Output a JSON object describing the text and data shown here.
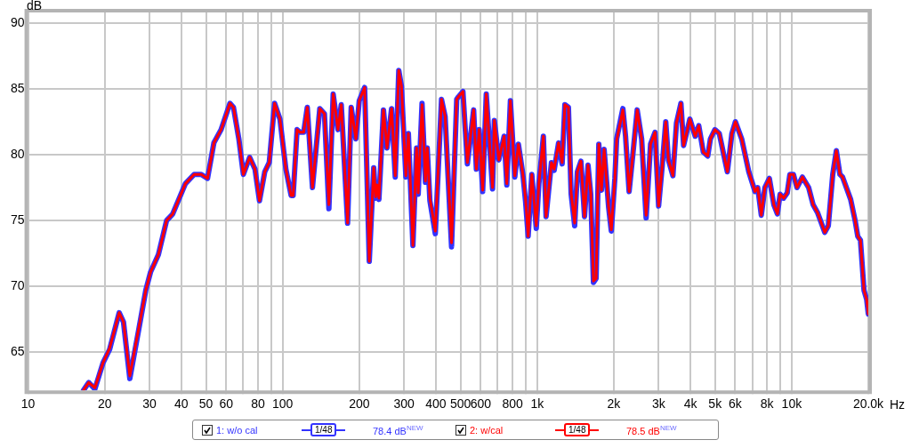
{
  "chart_data": {
    "type": "line",
    "xlabel": "Hz",
    "ylabel": "dB",
    "log": "x",
    "grid": true,
    "legend": "bottom",
    "marker": "none",
    "line_style": "solid",
    "xlim": [
      10,
      20000
    ],
    "ylim": [
      62.1,
      90.8
    ],
    "xticks": [
      10,
      20,
      30,
      40,
      50,
      60,
      {
        "value": 70,
        "label": null
      },
      80,
      {
        "value": 90,
        "label": null
      },
      100,
      200,
      300,
      400,
      500,
      600,
      {
        "value": 700,
        "label": null
      },
      800,
      {
        "value": 900,
        "label": null
      },
      {
        "value": 1000,
        "label": "1k"
      },
      {
        "value": 2000,
        "label": "2k"
      },
      {
        "value": 3000,
        "label": "3k"
      },
      {
        "value": 4000,
        "label": "4k"
      },
      {
        "value": 5000,
        "label": "5k"
      },
      {
        "value": 6000,
        "label": "6k"
      },
      {
        "value": 7000,
        "label": null
      },
      {
        "value": 8000,
        "label": "8k"
      },
      {
        "value": 9000,
        "label": null
      },
      {
        "value": 10000,
        "label": "10k"
      },
      {
        "value": 20000,
        "label": "20.0k"
      }
    ],
    "yticks": [
      65,
      70,
      75,
      80,
      85,
      90
    ],
    "annotations": [
      "1/48",
      "78.4 dB$^{NEW}$",
      "1/48",
      "78.5 dB$^{NEW}$"
    ],
    "x": [
      16.5,
      17.3,
      18.3,
      19.7,
      20.9,
      22.8,
      23.7,
      25.1,
      27.2,
      29.0,
      30.3,
      32.5,
      35.0,
      37.0,
      41.5,
      44.9,
      47.9,
      50.7,
      53.7,
      57.3,
      62.1,
      64.1,
      67.3,
      70.1,
      74.2,
      77.9,
      81.1,
      85.1,
      88.6,
      93.0,
      97.6,
      103,
      108,
      110,
      114,
      117,
      121,
      125,
      131,
      140,
      146,
      152,
      158,
      165,
      170,
      180,
      186,
      194,
      200,
      210,
      219,
      228,
      232,
      235,
      239,
      249,
      257,
      268,
      277,
      286,
      293,
      305,
      312,
      325,
      336,
      341,
      353,
      364,
      370,
      379,
      398,
      421,
      435,
      461,
      483,
      491,
      511,
      532,
      563,
      577,
      592,
      611,
      631,
      668,
      679,
      707,
      742,
      760,
      785,
      817,
      844,
      879,
      900,
      922,
      953,
      992,
      1016,
      1058,
      1084,
      1138,
      1166,
      1214,
      1254,
      1285,
      1327,
      1360,
      1404,
      1439,
      1486,
      1535,
      1585,
      1624,
      1664,
      1705,
      1747,
      1789,
      1833,
      1909,
      1956,
      2020,
      2053,
      2172,
      2225,
      2298,
      2374,
      2472,
      2574,
      2680,
      2790,
      2905,
      3001,
      3099,
      3201,
      3280,
      3415,
      3527,
      3672,
      3762,
      3981,
      4179,
      4316,
      4495,
      4680,
      4794,
      4993,
      5197,
      5589,
      5822,
      6012,
      6362,
      6786,
      7180,
      7356,
      7598,
      7847,
      8172,
      8511,
      8790,
      9005,
      9299,
      9605,
      9840,
      10160,
      10490,
      11020,
      11660,
      12140,
      12640,
      13490,
      13930,
      14500,
      14980,
      15470,
      15850,
      17050,
      17750,
      18180,
      18630,
      19240,
      19710,
      20000
    ],
    "series": [
      {
        "name": "1: w/o cal",
        "color": "#3333ff",
        "values": [
          62.1,
          62.7,
          62.2,
          64.2,
          65.2,
          68.0,
          67.3,
          63.0,
          66.7,
          69.7,
          71.1,
          72.4,
          75.0,
          75.5,
          77.8,
          78.5,
          78.5,
          78.2,
          80.9,
          81.9,
          83.9,
          83.6,
          81.2,
          78.5,
          79.8,
          78.9,
          76.5,
          78.7,
          79.4,
          83.9,
          82.7,
          78.9,
          76.9,
          76.9,
          81.9,
          81.7,
          81.7,
          83.6,
          77.5,
          83.5,
          83.1,
          75.9,
          84.6,
          81.9,
          83.8,
          74.8,
          83.6,
          81.2,
          84.1,
          85.1,
          71.9,
          79.0,
          76.7,
          77.7,
          76.6,
          83.4,
          80.5,
          83.5,
          78.3,
          86.4,
          85.2,
          78.3,
          81.6,
          73.1,
          80.5,
          77.0,
          83.9,
          77.9,
          80.5,
          76.5,
          74.0,
          84.2,
          82.9,
          73.0,
          84.2,
          84.4,
          84.8,
          79.3,
          83.4,
          78.9,
          81.9,
          77.2,
          84.6,
          77.4,
          82.6,
          79.6,
          81.4,
          77.7,
          84.1,
          78.3,
          80.8,
          78.5,
          76.5,
          73.8,
          78.5,
          74.4,
          77.8,
          81.4,
          75.3,
          79.4,
          78.8,
          80.9,
          79.3,
          83.8,
          83.6,
          77.0,
          74.6,
          78.7,
          79.5,
          75.3,
          79.2,
          77.0,
          70.3,
          70.6,
          80.8,
          77.3,
          80.4,
          76.0,
          74.2,
          78.2,
          81.2,
          83.5,
          81.4,
          77.2,
          79.9,
          83.4,
          81.2,
          75.2,
          80.8,
          81.7,
          76.1,
          79.1,
          82.5,
          79.6,
          78.4,
          82.4,
          83.9,
          80.7,
          82.7,
          81.4,
          82.2,
          80.2,
          79.9,
          81.2,
          81.9,
          81.6,
          78.7,
          81.6,
          82.5,
          81.2,
          78.7,
          77.2,
          77.5,
          75.4,
          77.5,
          78.2,
          76.2,
          75.5,
          77.0,
          76.7,
          77.1,
          78.5,
          78.5,
          77.5,
          78.3,
          77.5,
          76.2,
          75.6,
          74.1,
          74.6,
          78.5,
          80.3,
          78.5,
          78.3,
          76.6,
          75.0,
          73.8,
          73.5,
          69.7,
          69.0,
          67.9
        ]
      },
      {
        "name": "2: w/cal",
        "color": "#ff0000",
        "values": [
          62.1,
          62.7,
          62.3,
          64.2,
          65.3,
          68.0,
          67.3,
          63.2,
          66.8,
          69.7,
          71.1,
          72.4,
          75.0,
          75.5,
          77.8,
          78.5,
          78.5,
          78.2,
          80.9,
          81.9,
          83.9,
          83.6,
          81.2,
          78.5,
          79.8,
          78.9,
          76.5,
          78.7,
          79.4,
          83.9,
          82.7,
          78.9,
          76.9,
          76.9,
          81.9,
          81.7,
          81.7,
          83.6,
          77.5,
          83.5,
          83.1,
          76.2,
          84.6,
          81.9,
          83.8,
          74.8,
          83.6,
          81.2,
          84.1,
          85.1,
          71.9,
          79.0,
          76.8,
          77.7,
          76.7,
          83.4,
          80.5,
          83.5,
          78.4,
          86.4,
          85.2,
          78.4,
          81.6,
          73.1,
          80.5,
          77.1,
          83.8,
          78.0,
          80.5,
          76.7,
          74.2,
          84.2,
          82.9,
          73.3,
          84.2,
          84.4,
          84.8,
          79.4,
          83.4,
          78.9,
          81.9,
          77.3,
          84.6,
          77.5,
          82.6,
          79.6,
          81.4,
          77.8,
          84.1,
          78.4,
          80.8,
          78.5,
          76.7,
          73.8,
          78.5,
          74.6,
          77.8,
          81.4,
          75.3,
          79.4,
          78.9,
          80.9,
          79.4,
          83.8,
          83.6,
          77.1,
          74.8,
          78.7,
          79.5,
          75.3,
          79.2,
          77.1,
          70.4,
          70.6,
          80.8,
          77.3,
          80.4,
          76.0,
          74.3,
          78.2,
          81.1,
          83.4,
          81.4,
          77.2,
          79.9,
          83.4,
          81.2,
          75.4,
          80.8,
          81.7,
          76.1,
          79.1,
          82.5,
          79.6,
          78.4,
          82.4,
          83.9,
          80.7,
          82.7,
          81.4,
          82.2,
          80.2,
          79.9,
          81.2,
          81.9,
          81.6,
          78.7,
          81.6,
          82.5,
          81.2,
          78.7,
          77.2,
          77.5,
          75.4,
          77.5,
          78.2,
          76.2,
          75.5,
          77.0,
          76.7,
          77.1,
          78.5,
          78.5,
          77.5,
          78.3,
          77.5,
          76.2,
          75.6,
          74.1,
          74.6,
          78.5,
          80.3,
          78.5,
          78.3,
          76.6,
          75.0,
          73.8,
          73.5,
          69.7,
          69.0,
          67.9
        ]
      }
    ]
  }
}
